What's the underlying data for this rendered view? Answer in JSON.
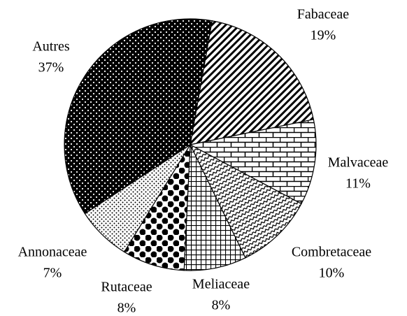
{
  "chart_data": {
    "type": "pie",
    "categories": [
      "Fabaceae",
      "Malvaceae",
      "Combretaceae",
      "Meliaceae",
      "Rutaceae",
      "Annonaceae",
      "Autres"
    ],
    "values": [
      19,
      11,
      10,
      8,
      8,
      7,
      37
    ],
    "value_labels": [
      "19%",
      "11%",
      "10%",
      "8%",
      "8%",
      "7%",
      "37%"
    ]
  }
}
